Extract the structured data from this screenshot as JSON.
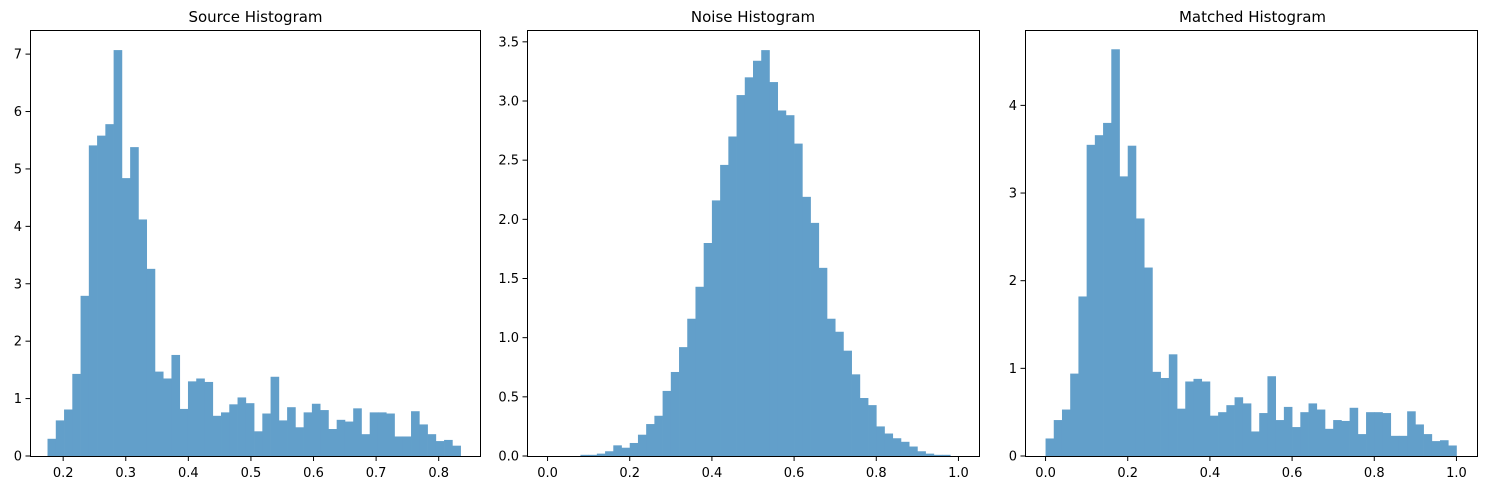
{
  "figure": {
    "bar_color": "#629fca"
  },
  "chart_data": [
    {
      "type": "bar",
      "title": "Source Histogram",
      "xlabel": "",
      "ylabel": "",
      "bin_start": 0.175,
      "bin_width": 0.0132,
      "xlim": [
        0.147,
        0.866
      ],
      "ylim": [
        0,
        7.42
      ],
      "xticks": [
        0.2,
        0.3,
        0.4,
        0.5,
        0.6,
        0.7,
        0.8
      ],
      "xtick_labels": [
        "0.2",
        "0.3",
        "0.4",
        "0.5",
        "0.6",
        "0.7",
        "0.8"
      ],
      "yticks": [
        0,
        1,
        2,
        3,
        4,
        5,
        6,
        7
      ],
      "ytick_labels": [
        "0",
        "1",
        "2",
        "3",
        "4",
        "5",
        "6",
        "7"
      ],
      "grid": false,
      "values": [
        0.3,
        0.62,
        0.81,
        1.43,
        2.79,
        5.41,
        5.58,
        5.78,
        7.07,
        4.84,
        5.38,
        4.12,
        3.26,
        1.47,
        1.35,
        1.76,
        0.82,
        1.3,
        1.35,
        1.29,
        0.7,
        0.76,
        0.9,
        1.02,
        0.92,
        0.43,
        0.74,
        1.38,
        0.62,
        0.85,
        0.5,
        0.76,
        0.91,
        0.8,
        0.47,
        0.63,
        0.6,
        0.83,
        0.38,
        0.76,
        0.76,
        0.74,
        0.34,
        0.34,
        0.78,
        0.55,
        0.38,
        0.26,
        0.28,
        0.18
      ]
    },
    {
      "type": "bar",
      "title": "Noise Histogram",
      "xlabel": "",
      "ylabel": "",
      "bin_start": 0.0,
      "bin_width": 0.02,
      "xlim": [
        -0.05,
        1.05
      ],
      "ylim": [
        0,
        3.6
      ],
      "xticks": [
        0.0,
        0.2,
        0.4,
        0.6,
        0.8,
        1.0
      ],
      "xtick_labels": [
        "0.0",
        "0.2",
        "0.4",
        "0.6",
        "0.8",
        "1.0"
      ],
      "yticks": [
        0,
        0.5,
        1.0,
        1.5,
        2.0,
        2.5,
        3.0,
        3.5
      ],
      "ytick_labels": [
        "0.0",
        "0.5",
        "1.0",
        "1.5",
        "2.0",
        "2.5",
        "3.0",
        "3.5"
      ],
      "grid": false,
      "values": [
        0,
        0,
        0,
        0,
        0.01,
        0.01,
        0.02,
        0.04,
        0.09,
        0.07,
        0.11,
        0.18,
        0.27,
        0.34,
        0.55,
        0.71,
        0.92,
        1.16,
        1.43,
        1.8,
        2.16,
        2.46,
        2.7,
        3.05,
        3.2,
        3.34,
        3.43,
        3.16,
        2.92,
        2.88,
        2.64,
        2.19,
        1.97,
        1.59,
        1.16,
        1.05,
        0.89,
        0.69,
        0.49,
        0.43,
        0.25,
        0.19,
        0.15,
        0.12,
        0.08,
        0.04,
        0.02,
        0.01,
        0.01,
        0
      ]
    },
    {
      "type": "bar",
      "title": "Matched Histogram",
      "xlabel": "",
      "ylabel": "",
      "bin_start": 0.0,
      "bin_width": 0.02,
      "xlim": [
        -0.05,
        1.05
      ],
      "ylim": [
        0,
        4.86
      ],
      "xticks": [
        0.0,
        0.2,
        0.4,
        0.6,
        0.8,
        1.0
      ],
      "xtick_labels": [
        "0.0",
        "0.2",
        "0.4",
        "0.6",
        "0.8",
        "1.0"
      ],
      "yticks": [
        0,
        1,
        2,
        3,
        4
      ],
      "ytick_labels": [
        "0",
        "1",
        "2",
        "3",
        "4"
      ],
      "grid": false,
      "values": [
        0.2,
        0.41,
        0.53,
        0.94,
        1.82,
        3.55,
        3.66,
        3.8,
        4.64,
        3.19,
        3.54,
        2.71,
        2.15,
        0.96,
        0.89,
        1.16,
        0.54,
        0.85,
        0.88,
        0.85,
        0.46,
        0.5,
        0.58,
        0.67,
        0.6,
        0.28,
        0.49,
        0.91,
        0.41,
        0.56,
        0.33,
        0.5,
        0.6,
        0.53,
        0.31,
        0.41,
        0.4,
        0.55,
        0.25,
        0.5,
        0.5,
        0.49,
        0.23,
        0.23,
        0.51,
        0.36,
        0.25,
        0.17,
        0.18,
        0.12
      ]
    }
  ]
}
